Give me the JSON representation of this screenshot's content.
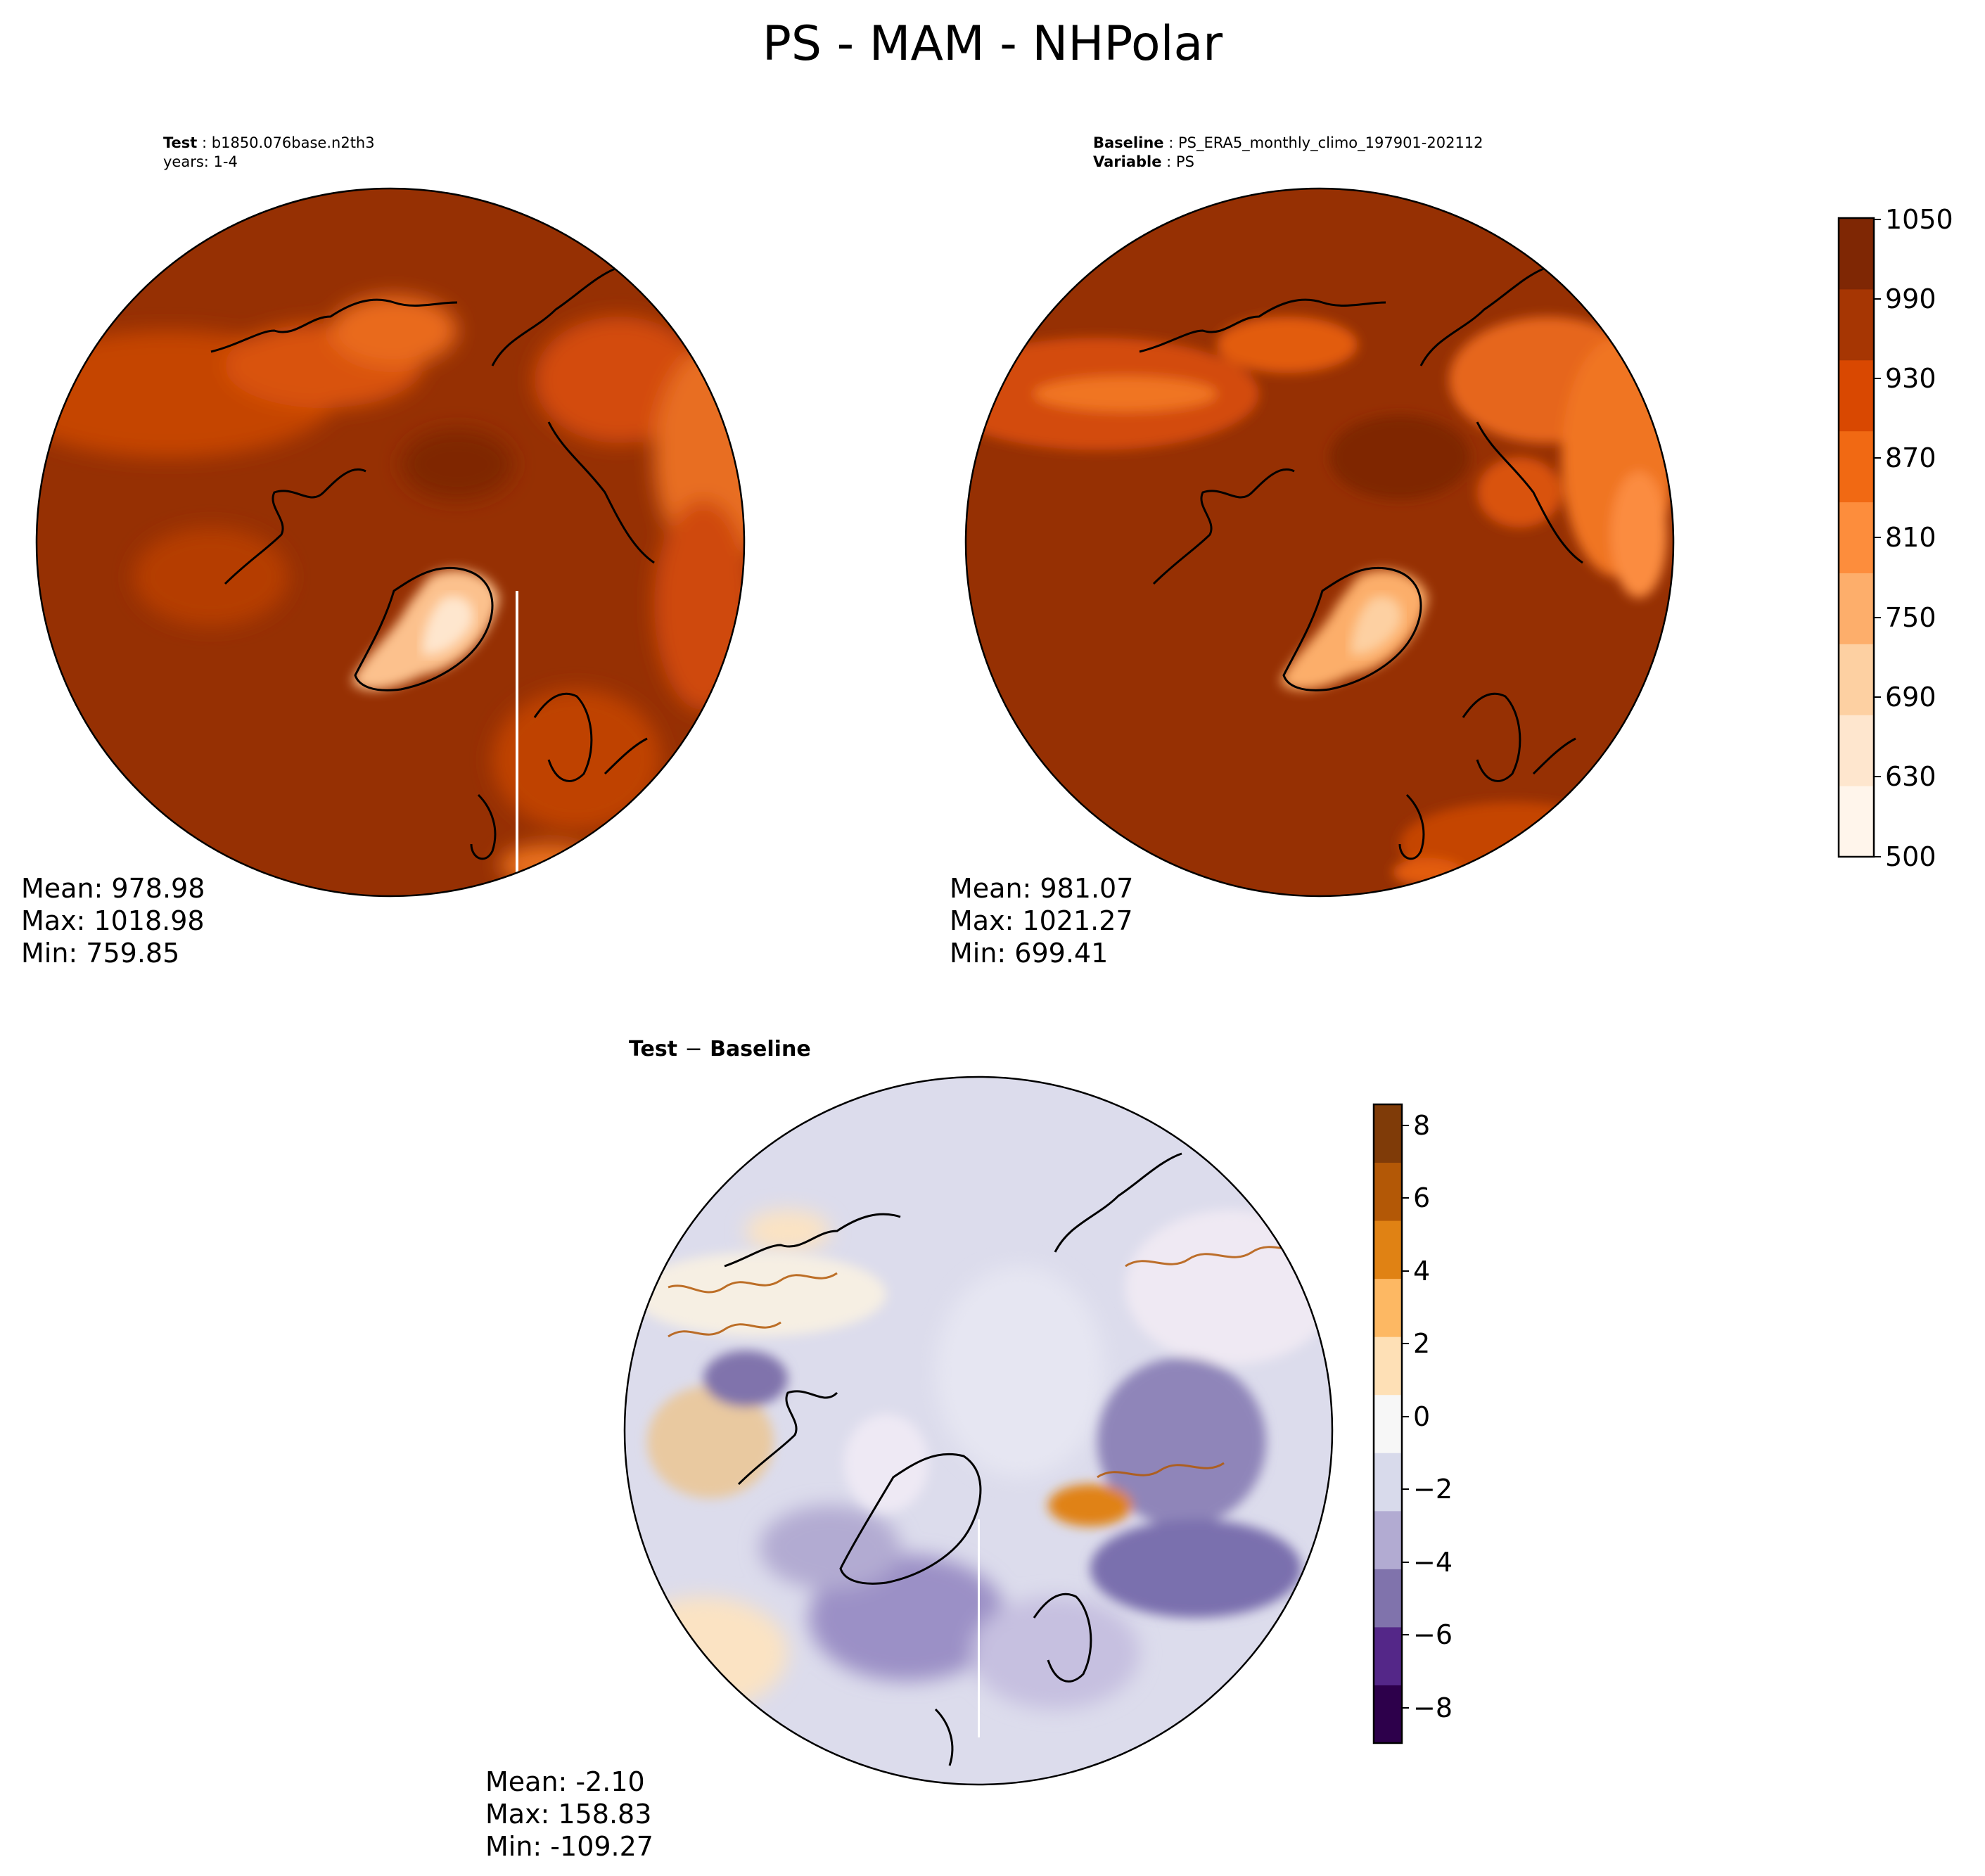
{
  "title": "PS - MAM - NHPolar",
  "panels": {
    "test": {
      "label": "Test",
      "case": "b1850.076base.n2th3",
      "years": "years: 1-4",
      "stats": {
        "mean": "Mean: 978.98",
        "max": "Max: 1018.98",
        "min": "Min: 759.85"
      }
    },
    "baseline": {
      "label": "Baseline",
      "case": "PS_ERA5_monthly_climo_197901-202112",
      "variable_label": "Variable",
      "variable": "PS",
      "stats": {
        "mean": "Mean: 981.07",
        "max": "Max: 1021.27",
        "min": "Min: 699.41"
      }
    },
    "diff": {
      "title_a": "Test",
      "title_op": "−",
      "title_b": "Baseline",
      "stats": {
        "mean": "Mean: -2.10",
        "max": "Max: 158.83",
        "min": "Min: -109.27"
      }
    }
  },
  "colorbars": {
    "main": {
      "ticks": [
        "1050",
        "990",
        "930",
        "870",
        "810",
        "750",
        "690",
        "630",
        "500"
      ],
      "colormap": "Oranges",
      "colors": [
        "#fff5eb",
        "#fee6ce",
        "#fdd0a2",
        "#fdae6b",
        "#fd8d3c",
        "#f16913",
        "#d94801",
        "#a63603",
        "#7f2704"
      ]
    },
    "diff": {
      "ticks": [
        "8",
        "6",
        "4",
        "2",
        "0",
        "−2",
        "−4",
        "−6",
        "−8"
      ],
      "colormap": "PuOr_r",
      "colors": [
        "#2d004b",
        "#542788",
        "#8073ac",
        "#b2abd2",
        "#d8daeb",
        "#f7f7f7",
        "#fee0b6",
        "#fdb863",
        "#e08214",
        "#b35806",
        "#7f3b08"
      ]
    }
  },
  "colors": {
    "ocean_fill": "#963003",
    "land_mid": "#c54406",
    "land_light": "#f07524",
    "greenland": "#fcc18d",
    "diff_ocean": "#dcdcec",
    "diff_warm": "#fbe3c3",
    "coastline": "#000000"
  }
}
